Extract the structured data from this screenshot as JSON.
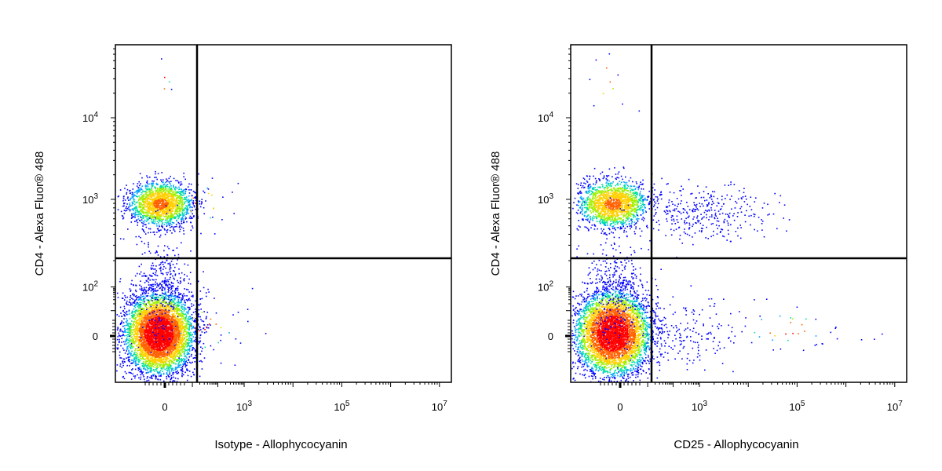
{
  "chart_data": [
    {
      "type": "scatter",
      "subtype": "flow-cytometry-density-dot-plot",
      "title": "",
      "xlabel": "Isotype - Allophycocyanin",
      "ylabel": "CD4 - Alexa Fluor® 488",
      "xscale": "biexponential",
      "yscale": "biexponential",
      "x_ticks": [
        {
          "value": "0",
          "label": "0",
          "exp": ""
        },
        {
          "value": "1e3",
          "label": "10",
          "exp": "3"
        },
        {
          "value": "1e5",
          "label": "10",
          "exp": "5"
        },
        {
          "value": "1e7",
          "label": "10",
          "exp": "7"
        }
      ],
      "y_ticks": [
        {
          "value": "0",
          "label": "0",
          "exp": ""
        },
        {
          "value": "1e2",
          "label": "10",
          "exp": "2"
        },
        {
          "value": "1e3",
          "label": "10",
          "exp": "3"
        },
        {
          "value": "1e4",
          "label": "10",
          "exp": "4"
        }
      ],
      "quadrant_gate": {
        "x": 100,
        "y": 200
      },
      "populations": [
        {
          "name": "",
          "x_center": 0,
          "y_center": 0,
          "density": "high",
          "relative_count": 0.65
        },
        {
          "name": "",
          "x_center": 0,
          "y_center": 900,
          "density": "high",
          "relative_count": 0.3
        },
        {
          "name": "",
          "x_center": 400,
          "y_center": 400,
          "density": "sparse",
          "relative_count": 0.05
        }
      ],
      "grid": false,
      "legend": "none"
    },
    {
      "type": "scatter",
      "subtype": "flow-cytometry-density-dot-plot",
      "title": "",
      "xlabel": "CD25 - Allophycocyanin",
      "ylabel": "CD4 - Alexa Fluor® 488",
      "xscale": "biexponential",
      "yscale": "biexponential",
      "x_ticks": [
        {
          "value": "0",
          "label": "0",
          "exp": ""
        },
        {
          "value": "1e3",
          "label": "10",
          "exp": "3"
        },
        {
          "value": "1e5",
          "label": "10",
          "exp": "5"
        },
        {
          "value": "1e7",
          "label": "10",
          "exp": "7"
        }
      ],
      "y_ticks": [
        {
          "value": "0",
          "label": "0",
          "exp": ""
        },
        {
          "value": "1e2",
          "label": "10",
          "exp": "2"
        },
        {
          "value": "1e3",
          "label": "10",
          "exp": "3"
        },
        {
          "value": "1e4",
          "label": "10",
          "exp": "4"
        }
      ],
      "quadrant_gate": {
        "x": 100,
        "y": 200
      },
      "populations": [
        {
          "name": "",
          "x_center": 0,
          "y_center": 0,
          "density": "high",
          "relative_count": 0.6
        },
        {
          "name": "",
          "x_center": 0,
          "y_center": 900,
          "density": "high",
          "relative_count": 0.25
        },
        {
          "name": "",
          "x_center": 2000,
          "y_center": 700,
          "density": "medium",
          "relative_count": 0.1
        },
        {
          "name": "",
          "x_center": 50000,
          "y_center": 0,
          "density": "sparse",
          "relative_count": 0.05
        }
      ],
      "grid": false,
      "legend": "none"
    }
  ],
  "colors": {
    "density_scale": [
      "#0000ff",
      "#00a0ff",
      "#00e0a0",
      "#a0f000",
      "#ffd000",
      "#ff6000",
      "#ff0000"
    ],
    "gate_line": "#000000",
    "axis": "#000000"
  }
}
